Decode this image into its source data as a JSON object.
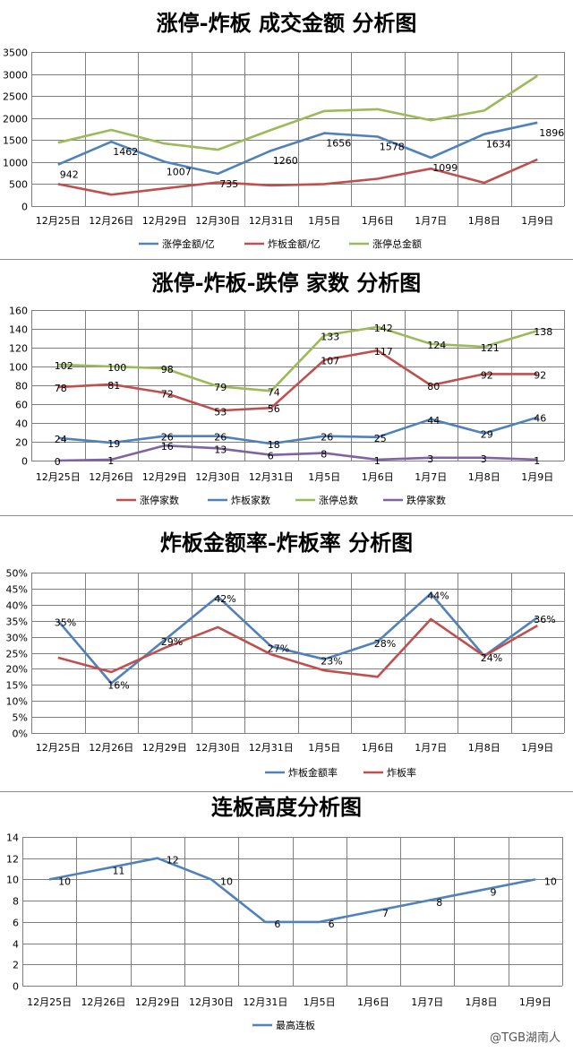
{
  "watermark": "@TGB湖南人",
  "chart_data": [
    {
      "type": "line",
      "title": "涨停-炸板 成交金额 分析图",
      "categories": [
        "12月25日",
        "12月26日",
        "12月29日",
        "12月30日",
        "12月31日",
        "1月5日",
        "1月6日",
        "1月7日",
        "1月8日",
        "1月9日"
      ],
      "ylim": [
        0,
        3500
      ],
      "yticks": [
        0,
        500,
        1000,
        1500,
        2000,
        2500,
        3000,
        3500
      ],
      "series": [
        {
          "name": "涨停金额/亿",
          "color": "#4f81bd",
          "values": [
            942,
            1462,
            1007,
            735,
            1260,
            1656,
            1578,
            1099,
            1634,
            1896
          ],
          "labels": [
            "942",
            "1462",
            "1007",
            "735",
            "1260",
            "1656",
            "1578",
            "1099",
            "1634",
            "1896"
          ]
        },
        {
          "name": "炸板金额/亿",
          "color": "#c0504d",
          "values": [
            500,
            260,
            400,
            540,
            470,
            500,
            620,
            850,
            530,
            1060
          ]
        },
        {
          "name": "涨停总金额",
          "color": "#9bbb59",
          "values": [
            1440,
            1730,
            1420,
            1280,
            1730,
            2160,
            2200,
            1950,
            2170,
            2960
          ]
        }
      ]
    },
    {
      "type": "line",
      "title": "涨停-炸板-跌停 家数 分析图",
      "categories": [
        "12月25日",
        "12月26日",
        "12月29日",
        "12月30日",
        "12月31日",
        "1月5日",
        "1月6日",
        "1月7日",
        "1月8日",
        "1月9日"
      ],
      "ylim": [
        0,
        160
      ],
      "yticks": [
        0,
        20,
        40,
        60,
        80,
        100,
        120,
        140,
        160
      ],
      "series": [
        {
          "name": "涨停家数",
          "color": "#c0504d",
          "values": [
            78,
            81,
            72,
            53,
            56,
            107,
            117,
            80,
            92,
            92
          ],
          "labels": [
            "78",
            "81",
            "72",
            "53",
            "56",
            "107",
            "117",
            "80",
            "92",
            "92"
          ]
        },
        {
          "name": "炸板家数",
          "color": "#4f81bd",
          "values": [
            24,
            19,
            26,
            26,
            18,
            26,
            25,
            44,
            29,
            46
          ],
          "labels": [
            "24",
            "19",
            "26",
            "26",
            "18",
            "26",
            "25",
            "44",
            "29",
            "46"
          ]
        },
        {
          "name": "涨停总数",
          "color": "#9bbb59",
          "values": [
            102,
            100,
            98,
            79,
            74,
            133,
            142,
            124,
            121,
            138
          ],
          "labels": [
            "102",
            "100",
            "98",
            "79",
            "74",
            "133",
            "142",
            "124",
            "121",
            "138"
          ]
        },
        {
          "name": "跌停家数",
          "color": "#8064a2",
          "values": [
            0,
            1,
            16,
            13,
            6,
            8,
            1,
            3,
            3,
            1
          ],
          "labels": [
            "0",
            "1",
            "16",
            "13",
            "6",
            "8",
            "1",
            "3",
            "3",
            "1"
          ]
        }
      ]
    },
    {
      "type": "line",
      "title": "炸板金额率-炸板率 分析图",
      "categories": [
        "12月25日",
        "12月26日",
        "12月29日",
        "12月30日",
        "12月31日",
        "1月5日",
        "1月6日",
        "1月7日",
        "1月8日",
        "1月9日"
      ],
      "ylim": [
        0,
        50
      ],
      "yticks": [
        "0%",
        "5%",
        "10%",
        "15%",
        "20%",
        "25%",
        "30%",
        "35%",
        "40%",
        "45%",
        "50%"
      ],
      "series": [
        {
          "name": "炸板金额率",
          "color": "#4f81bd",
          "values": [
            35,
            15.5,
            29,
            42.5,
            27,
            23,
            28.5,
            43.5,
            24,
            36
          ],
          "labels": [
            "35%",
            "16%",
            "29%",
            "42%",
            "27%",
            "23%",
            "28%",
            "44%",
            "24%",
            "36%"
          ]
        },
        {
          "name": "炸板率",
          "color": "#c0504d",
          "values": [
            23.5,
            19,
            26.5,
            33,
            24.5,
            19.5,
            17.5,
            35.5,
            24,
            33.5
          ]
        }
      ]
    },
    {
      "type": "line",
      "title": "连板高度分析图",
      "categories": [
        "12月25日",
        "12月26日",
        "12月29日",
        "12月30日",
        "12月31日",
        "1月5日",
        "1月6日",
        "1月7日",
        "1月8日",
        "1月9日"
      ],
      "ylim": [
        0,
        14
      ],
      "yticks": [
        0,
        2,
        4,
        6,
        8,
        10,
        12,
        14
      ],
      "series": [
        {
          "name": "最高连板",
          "color": "#4f81bd",
          "values": [
            10,
            11,
            12,
            10,
            6,
            6,
            7,
            8,
            9,
            10
          ],
          "labels": [
            "10",
            "11",
            "12",
            "10",
            "6",
            "6",
            "7",
            "8",
            "9",
            "10"
          ]
        }
      ]
    }
  ]
}
